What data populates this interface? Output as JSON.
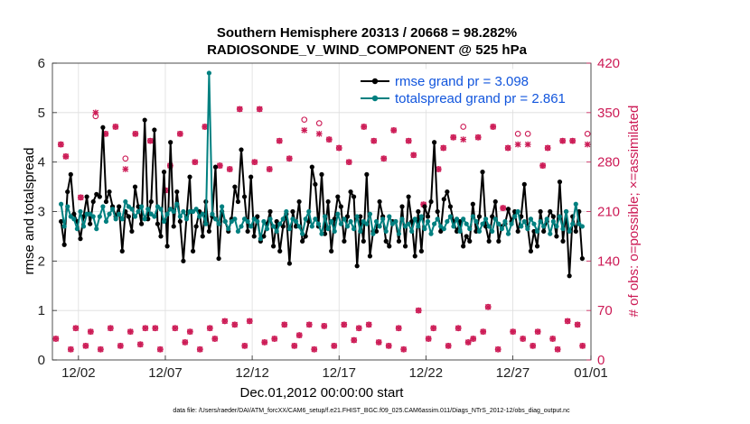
{
  "chart_data": {
    "type": "line",
    "title": "Southern Hemisphere 20313 / 20668 = 98.282%",
    "subtitle": "RADIOSONDE_V_WIND_COMPONENT @ 525 hPa",
    "xlabel": "Dec.01,2012 00:00:00 start",
    "ylabel": "rmse and totalspread",
    "ylabel_right": "# of obs: o=possible; ×=assimilated",
    "footnote": "data file: /Users/raeder/DAI/ATM_forcXX/CAM6_setup/f.e21.FHIST_BGC.f09_025.CAM6assim.011/Diags_NTrS_2012-12/obs_diag_output.nc",
    "xlim": [
      0.5,
      31.5
    ],
    "ylim": [
      0,
      6
    ],
    "ylim_right": [
      0,
      420
    ],
    "x_ticks": [
      {
        "value": 2,
        "label": "12/02"
      },
      {
        "value": 7,
        "label": "12/07"
      },
      {
        "value": 12,
        "label": "12/12"
      },
      {
        "value": 17,
        "label": "12/17"
      },
      {
        "value": 22,
        "label": "12/22"
      },
      {
        "value": 27,
        "label": "12/27"
      },
      {
        "value": 32,
        "label": "01/01"
      }
    ],
    "y_ticks": [
      "0",
      "1",
      "2",
      "3",
      "4",
      "5",
      "6"
    ],
    "y_ticks_right": [
      "0",
      "70",
      "140",
      "210",
      "280",
      "350",
      "420"
    ],
    "grid": true,
    "legend_position": "top-right",
    "colors": {
      "rmse": "#000000",
      "spread": "#008080",
      "obs": "#cc1a55"
    },
    "series": [
      {
        "name": "rmse grand pr = 3.098",
        "axis": "left",
        "values": [
          2.8,
          2.33,
          3.4,
          3.75,
          2.95,
          2.8,
          2.45,
          2.9,
          3.3,
          2.75,
          3.2,
          3.35,
          3.3,
          4.7,
          3.2,
          3.4,
          3.1,
          2.9,
          3.1,
          2.2,
          3.0,
          2.9,
          2.6,
          3.5,
          3.1,
          2.75,
          4.85,
          2.85,
          3.2,
          4.65,
          2.75,
          2.5,
          3.8,
          2.3,
          4.4,
          2.7,
          3.4,
          2.8,
          2.0,
          2.9,
          3.7,
          2.2,
          2.7,
          3.0,
          2.5,
          3.2,
          2.6,
          2.9,
          3.9,
          2.05,
          3.0,
          2.8,
          2.6,
          2.85,
          3.5,
          3.2,
          4.25,
          3.3,
          2.6,
          3.7,
          2.5,
          2.9,
          2.4,
          2.5,
          2.75,
          3.0,
          2.3,
          2.8,
          2.2,
          2.7,
          2.95,
          1.95,
          3.0,
          2.7,
          3.2,
          2.4,
          2.5,
          2.8,
          3.9,
          3.55,
          2.7,
          3.75,
          2.55,
          3.2,
          2.2,
          2.85,
          3.3,
          3.1,
          2.4,
          2.9,
          3.4,
          3.3,
          1.9,
          2.9,
          2.4,
          3.75,
          2.1,
          2.6,
          2.6,
          3.2,
          2.9,
          2.4,
          2.3,
          2.8,
          2.8,
          2.4,
          3.1,
          2.3,
          3.3,
          2.8,
          2.1,
          3.0,
          2.2,
          3.1,
          2.9,
          3.2,
          4.4,
          3.0,
          2.6,
          3.25,
          3.4,
          3.1,
          2.8,
          2.6,
          2.8,
          2.3,
          2.5,
          2.4,
          3.15,
          2.6,
          2.9,
          3.8,
          2.7,
          2.4,
          2.9,
          3.2,
          2.4,
          2.7,
          2.75,
          3.05,
          2.8,
          3.0,
          2.6,
          2.9,
          3.55,
          2.7,
          2.2,
          2.6,
          2.3,
          3.0,
          2.6,
          2.8,
          3.0,
          2.9,
          2.5,
          3.6,
          2.4,
          3.0,
          1.7,
          2.9,
          2.6,
          3.0,
          2.05
        ]
      },
      {
        "name": "totalspread grand pr = 2.861",
        "axis": "left",
        "values": [
          3.15,
          2.7,
          3.1,
          2.9,
          2.85,
          2.65,
          3.0,
          2.7,
          2.95,
          2.95,
          2.9,
          2.65,
          2.9,
          3.1,
          2.8,
          2.95,
          3.05,
          2.85,
          2.95,
          2.85,
          3.2,
          3.1,
          3.05,
          2.9,
          3.0,
          3.1,
          2.85,
          3.05,
          2.95,
          2.9,
          3.1,
          3.05,
          2.8,
          2.95,
          3.05,
          3.0,
          3.15,
          2.9,
          3.0,
          2.85,
          3.0,
          3.0,
          3.05,
          2.9,
          2.95,
          2.75,
          5.8,
          2.95,
          2.85,
          2.75,
          3.1,
          2.8,
          2.65,
          2.8,
          2.85,
          2.6,
          2.7,
          2.85,
          2.8,
          2.7,
          2.85,
          2.8,
          2.45,
          2.8,
          2.65,
          2.85,
          2.7,
          2.6,
          2.75,
          2.85,
          3.0,
          2.65,
          2.85,
          2.8,
          2.7,
          2.55,
          2.85,
          3.0,
          2.7,
          2.85,
          2.75,
          2.55,
          2.9,
          2.65,
          2.8,
          2.6,
          2.95,
          2.75,
          2.85,
          2.7,
          2.8,
          2.65,
          2.9,
          2.6,
          2.8,
          2.75,
          2.95,
          2.55,
          2.8,
          2.7,
          2.85,
          2.6,
          2.9,
          2.75,
          2.8,
          2.55,
          2.85,
          2.7,
          2.75,
          2.6,
          2.85,
          2.7,
          2.9,
          2.65,
          2.8,
          2.55,
          2.75,
          2.85,
          2.7,
          2.65,
          2.8,
          2.9,
          2.7,
          2.85,
          2.6,
          2.85,
          2.75,
          2.65,
          2.9,
          2.8,
          2.6,
          2.75,
          2.85,
          2.7,
          2.6,
          2.85,
          2.75,
          2.65,
          2.8,
          2.55,
          2.75,
          2.9,
          3.0,
          2.7,
          2.8,
          2.65,
          2.85,
          2.75,
          2.6,
          2.8,
          2.7,
          2.85,
          2.55,
          2.8,
          2.7,
          2.9,
          2.65,
          3.0,
          2.6,
          2.75,
          3.15,
          2.75,
          2.7
        ]
      },
      {
        "name": "obs possible (o)",
        "axis": "right",
        "marker": "circle",
        "values": [
          30,
          305,
          288,
          15,
          45,
          230,
          20,
          40,
          345,
          15,
          320,
          45,
          330,
          20,
          285,
          40,
          320,
          22,
          45,
          310,
          45,
          15,
          240,
          275,
          45,
          320,
          25,
          40,
          280,
          15,
          330,
          45,
          30,
          275,
          55,
          270,
          50,
          355,
          20,
          55,
          280,
          355,
          25,
          270,
          30,
          310,
          50,
          285,
          20,
          35,
          340,
          50,
          15,
          335,
          48,
          312,
          20,
          300,
          50,
          280,
          28,
          45,
          330,
          50,
          310,
          25,
          285,
          20,
          325,
          45,
          15,
          310,
          290,
          70,
          220,
          30,
          45,
          270,
          300,
          20,
          315,
          45,
          330,
          25,
          30,
          315,
          40,
          75,
          330,
          15,
          215,
          300,
          40,
          320,
          30,
          320,
          20,
          40,
          275,
          300,
          30,
          15,
          310,
          55,
          310,
          50,
          20,
          320
        ]
      },
      {
        "name": "obs assimilated (×)",
        "axis": "right",
        "marker": "x",
        "values": [
          30,
          305,
          288,
          15,
          45,
          230,
          20,
          40,
          350,
          15,
          320,
          45,
          330,
          20,
          270,
          40,
          320,
          22,
          45,
          310,
          45,
          15,
          240,
          275,
          45,
          320,
          25,
          40,
          280,
          15,
          330,
          45,
          30,
          275,
          55,
          270,
          50,
          355,
          20,
          55,
          280,
          355,
          25,
          270,
          30,
          310,
          50,
          285,
          20,
          35,
          325,
          50,
          15,
          320,
          48,
          312,
          20,
          300,
          50,
          280,
          28,
          45,
          330,
          50,
          310,
          25,
          285,
          20,
          325,
          45,
          15,
          310,
          290,
          70,
          220,
          30,
          45,
          270,
          300,
          20,
          315,
          45,
          312,
          25,
          30,
          315,
          40,
          75,
          330,
          15,
          215,
          300,
          40,
          305,
          30,
          305,
          20,
          40,
          275,
          300,
          30,
          15,
          310,
          55,
          310,
          50,
          20,
          305
        ]
      }
    ],
    "legend": [
      {
        "label": "rmse grand pr = 3.098",
        "series": "rmse"
      },
      {
        "label": "totalspread grand pr = 2.861",
        "series": "spread"
      }
    ]
  }
}
